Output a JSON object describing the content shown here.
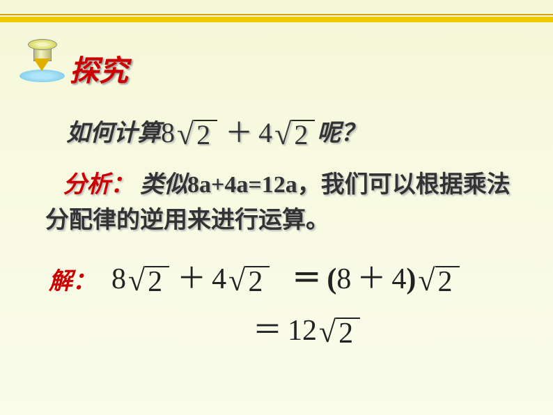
{
  "top_border": {
    "color1": "#d4a000",
    "color2": "#eec900"
  },
  "pin_icon": {
    "name": "pushpin-icon"
  },
  "title": "探究",
  "question": {
    "prefix": "如何计算",
    "expr": {
      "t1_coef": "8",
      "t1_rad": "2",
      "op": "＋",
      "t2_coef": "4",
      "t2_rad": "2"
    },
    "suffix": "呢？"
  },
  "analysis": {
    "label": "分析：",
    "text1": " 类似",
    "formula": "8a+4a=12a",
    "text2": "，我们可以根据乘法分配律的逆用来进行运算。"
  },
  "solution": {
    "label": "解：",
    "step1_left": {
      "t1_coef": "8",
      "t1_rad": "2",
      "op": "＋",
      "t2_coef": "4",
      "t2_rad": "2"
    },
    "step1_eq": "＝",
    "step1_right": {
      "lpar": "(",
      "a": "8",
      "op": "＋",
      "b": "4",
      "rpar": ")",
      "rad": "2"
    },
    "step2_eq": "＝",
    "step2_right": {
      "coef": "12",
      "rad": "2"
    }
  },
  "colors": {
    "accent": "#cc0000",
    "text": "#333",
    "shadow": "#bbb"
  }
}
